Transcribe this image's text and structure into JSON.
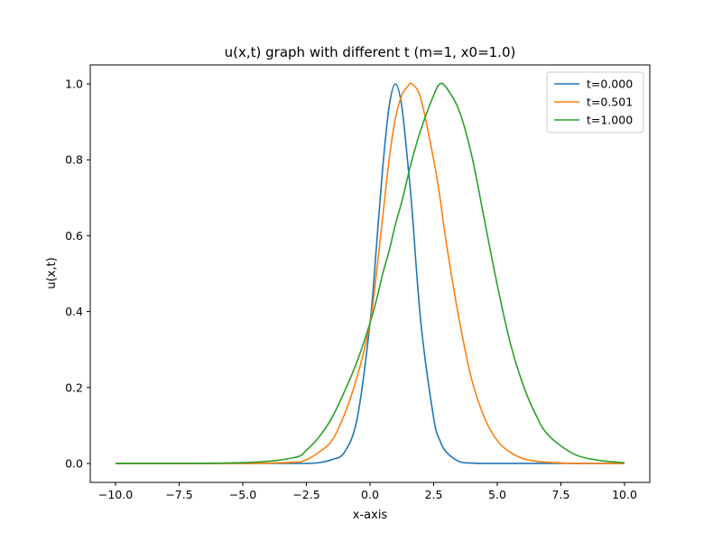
{
  "chart_data": {
    "type": "line",
    "title": "u(x,t) graph with different t (m=1, x0=1.0)",
    "xlabel": "x-axis",
    "ylabel": "u(x,t)",
    "xlim": [
      -10.0,
      10.0
    ],
    "ylim": [
      -0.05,
      1.05
    ],
    "x_ticks": [
      -10.0,
      -7.5,
      -5.0,
      -2.5,
      0.0,
      2.5,
      5.0,
      7.5,
      10.0
    ],
    "x_tick_labels": [
      "−10.0",
      "−7.5",
      "−5.0",
      "−2.5",
      "0.0",
      "2.5",
      "5.0",
      "7.5",
      "10.0"
    ],
    "y_ticks": [
      0.0,
      0.2,
      0.4,
      0.6,
      0.8,
      1.0
    ],
    "y_tick_labels": [
      "0.0",
      "0.2",
      "0.4",
      "0.6",
      "0.8",
      "1.0"
    ],
    "grid": false,
    "legend_position": "top-right",
    "x": [
      -10.0,
      -5.0,
      -3.0,
      -2.5,
      -2.0,
      -1.5,
      -1.0,
      -0.5,
      0.0,
      0.25,
      0.5,
      0.75,
      1.0,
      1.25,
      1.5,
      1.65,
      2.0,
      2.5,
      2.75,
      3.0,
      3.5,
      4.0,
      4.5,
      5.0,
      5.5,
      6.0,
      6.5,
      7.0,
      8.0,
      9.0,
      10.0
    ],
    "series": [
      {
        "name": "t=0.000",
        "color": "#1f77b4",
        "values": [
          0.0,
          0.0,
          0.0,
          0.0,
          0.002,
          0.01,
          0.03,
          0.12,
          0.37,
          0.57,
          0.78,
          0.94,
          1.0,
          0.94,
          0.78,
          0.67,
          0.37,
          0.12,
          0.06,
          0.03,
          0.005,
          0.001,
          0.0,
          0.0,
          0.0,
          0.0,
          0.0,
          0.0,
          0.0,
          0.0,
          0.0
        ]
      },
      {
        "name": "t=0.501",
        "color": "#ff7f0e",
        "values": [
          0.0,
          0.0,
          0.003,
          0.01,
          0.03,
          0.06,
          0.13,
          0.23,
          0.37,
          0.5,
          0.65,
          0.8,
          0.91,
          0.97,
          0.995,
          1.0,
          0.96,
          0.8,
          0.7,
          0.58,
          0.38,
          0.22,
          0.12,
          0.06,
          0.03,
          0.013,
          0.006,
          0.003,
          0.0,
          0.0,
          0.0
        ]
      },
      {
        "name": "t=1.000",
        "color": "#2ca02c",
        "values": [
          0.0,
          0.002,
          0.015,
          0.035,
          0.07,
          0.12,
          0.19,
          0.27,
          0.37,
          0.43,
          0.5,
          0.56,
          0.63,
          0.69,
          0.76,
          0.8,
          0.88,
          0.97,
          1.0,
          0.99,
          0.93,
          0.81,
          0.64,
          0.47,
          0.32,
          0.21,
          0.13,
          0.075,
          0.025,
          0.008,
          0.002
        ]
      }
    ]
  }
}
